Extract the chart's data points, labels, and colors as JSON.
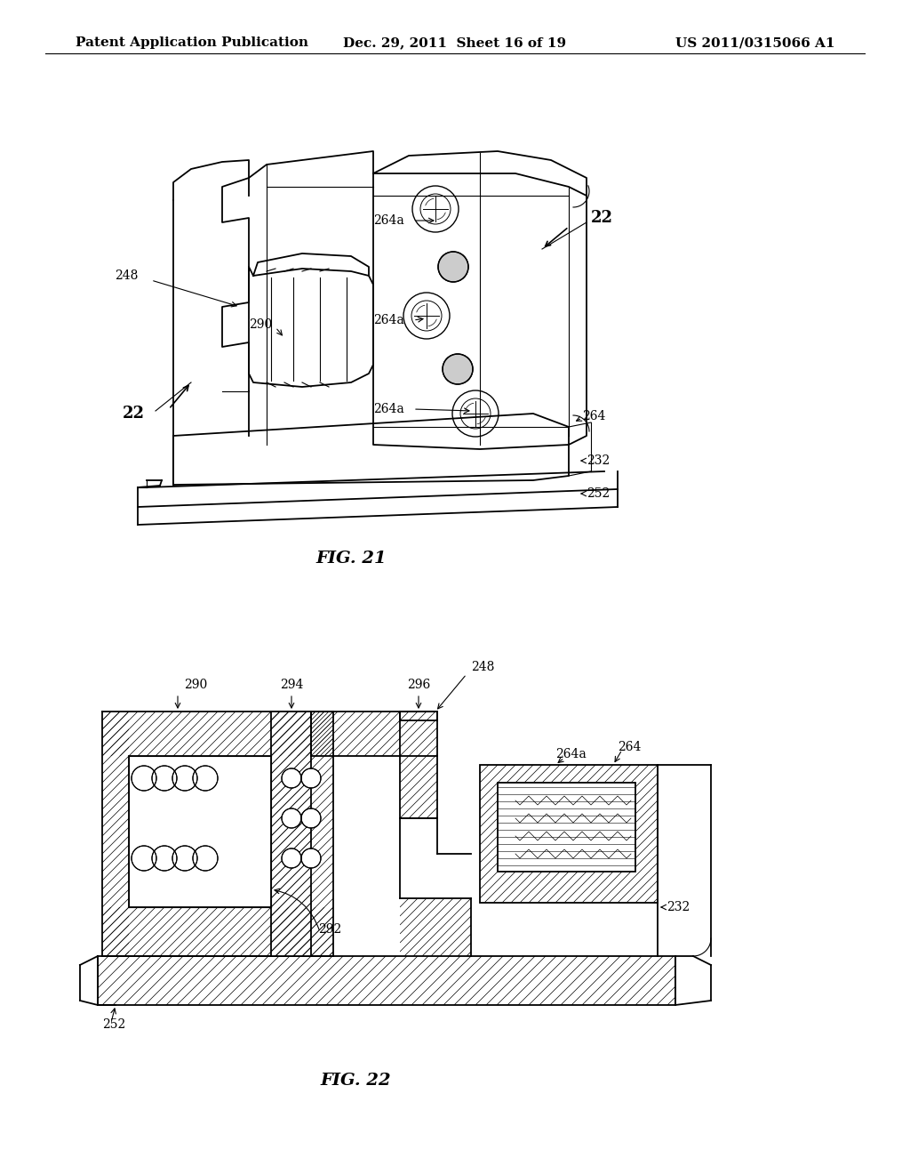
{
  "background_color": "#ffffff",
  "header_left": "Patent Application Publication",
  "header_center": "Dec. 29, 2011  Sheet 16 of 19",
  "header_right": "US 2011/0315066 A1",
  "header_fontsize": 11,
  "fig21_caption": "FIG. 21",
  "fig22_caption": "FIG. 22",
  "label_fontsize": 10,
  "caption_fontsize": 14
}
